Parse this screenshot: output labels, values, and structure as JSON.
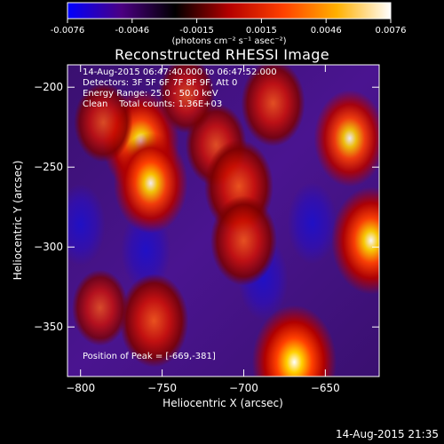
{
  "colorbar": {
    "tick_labels": [
      "-0.0076",
      "-0.0046",
      "-0.0015",
      "0.0015",
      "0.0046",
      "0.0076"
    ],
    "unit_label": "(photons cm⁻² s⁻¹ asec⁻²)",
    "range": [
      -0.0076,
      0.0076
    ],
    "stops": [
      "#0000ff",
      "#4b0082",
      "#000000",
      "#b40000",
      "#ff4000",
      "#ffb000",
      "#ffffff"
    ]
  },
  "chart_data": {
    "type": "heatmap",
    "title": "Reconstructed RHESSI Image",
    "xlabel": "Heliocentric X (arcsec)",
    "ylabel": "Heliocentric Y (arcsec)",
    "xlim": [
      -808,
      -617
    ],
    "ylim": [
      -381,
      -186
    ],
    "xticks": [
      -800,
      -750,
      -700,
      -650
    ],
    "yticks": [
      -200,
      -250,
      -300,
      -350
    ],
    "annotations": [
      "14-Aug-2015 06:47:40.000 to 06:47:52.000",
      "Detectors: 3F 5F 6F 7F 8F 9F, Att 0",
      "Energy Range: 25.0 - 50.0 keV",
      "Clean    Total counts: 1.36E+03"
    ],
    "peak_label": "Position of Peak = [-669,-381]",
    "peak_position": [
      -669,
      -381
    ],
    "sources": [
      {
        "x": -763,
        "y": -234,
        "intensity": 0.85
      },
      {
        "x": -757,
        "y": -260,
        "intensity": 0.8
      },
      {
        "x": -717,
        "y": -236,
        "intensity": 0.55
      },
      {
        "x": -703,
        "y": -262,
        "intensity": 0.7
      },
      {
        "x": -700,
        "y": -296,
        "intensity": 0.65
      },
      {
        "x": -682,
        "y": -210,
        "intensity": 0.6
      },
      {
        "x": -635,
        "y": -232,
        "intensity": 0.75
      },
      {
        "x": -622,
        "y": -296,
        "intensity": 0.9
      },
      {
        "x": -669,
        "y": -372,
        "intensity": 1.0
      },
      {
        "x": -755,
        "y": -346,
        "intensity": 0.7
      },
      {
        "x": -786,
        "y": -222,
        "intensity": 0.5
      },
      {
        "x": -788,
        "y": -338,
        "intensity": 0.45
      },
      {
        "x": -735,
        "y": -205,
        "intensity": 0.45
      }
    ],
    "cold_regions": [
      {
        "x": -688,
        "y": -320
      },
      {
        "x": -658,
        "y": -285
      },
      {
        "x": -760,
        "y": -302
      },
      {
        "x": -800,
        "y": -286
      }
    ]
  },
  "footer": {
    "timestamp": "14-Aug-2015 21:35"
  },
  "colors": {
    "background": "#000000",
    "text": "#ffffff"
  }
}
